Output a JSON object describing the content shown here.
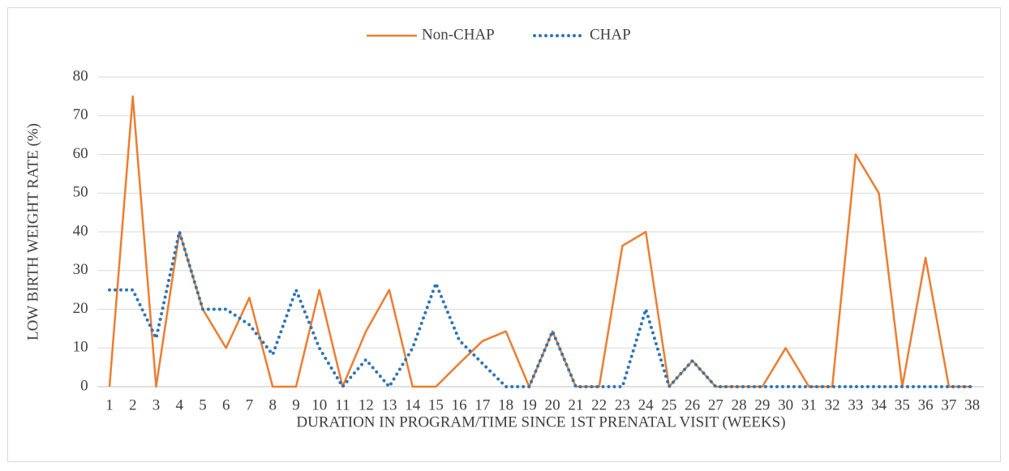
{
  "chart_data": {
    "type": "line",
    "x_label": "DURATION IN PROGRAM/TIME SINCE 1ST PRENATAL VISIT (WEEKS)",
    "y_label": "LOW BIRTH WEIGHT RATE (%)",
    "categories": [
      "1",
      "2",
      "3",
      "4",
      "5",
      "6",
      "7",
      "8",
      "9",
      "10",
      "11",
      "12",
      "13",
      "14",
      "15",
      "16",
      "17",
      "18",
      "19",
      "20",
      "21",
      "22",
      "23",
      "24",
      "25",
      "26",
      "27",
      "28",
      "29",
      "30",
      "31",
      "32",
      "33",
      "34",
      "35",
      "36",
      "37",
      "38"
    ],
    "series": [
      {
        "name": "Non-CHAP",
        "color": "#ed7d31",
        "style": "solid",
        "values": [
          0,
          75,
          0,
          40,
          20,
          10,
          23,
          0,
          0,
          25,
          0,
          14.3,
          25,
          0,
          0,
          6,
          11.8,
          14.3,
          0,
          14.3,
          0,
          0,
          36.4,
          40,
          0,
          6.7,
          0,
          0,
          0,
          10,
          0,
          0,
          60,
          50,
          0,
          33.3,
          0,
          0
        ]
      },
      {
        "name": "CHAP",
        "color": "#2e75b6",
        "style": "dotted",
        "values": [
          25,
          25,
          12.5,
          40,
          20,
          20,
          16,
          8.3,
          25,
          10,
          0,
          7,
          0,
          10,
          26.7,
          12,
          6,
          0,
          0,
          14.3,
          0,
          0,
          0,
          20,
          0,
          6.7,
          0,
          0,
          0,
          0,
          0,
          0,
          0,
          0,
          0,
          0,
          0,
          0
        ]
      }
    ],
    "ylim": [
      0,
      80
    ],
    "yticks": [
      0,
      10,
      20,
      30,
      40,
      50,
      60,
      70,
      80
    ],
    "grid": true,
    "legend": "top"
  }
}
